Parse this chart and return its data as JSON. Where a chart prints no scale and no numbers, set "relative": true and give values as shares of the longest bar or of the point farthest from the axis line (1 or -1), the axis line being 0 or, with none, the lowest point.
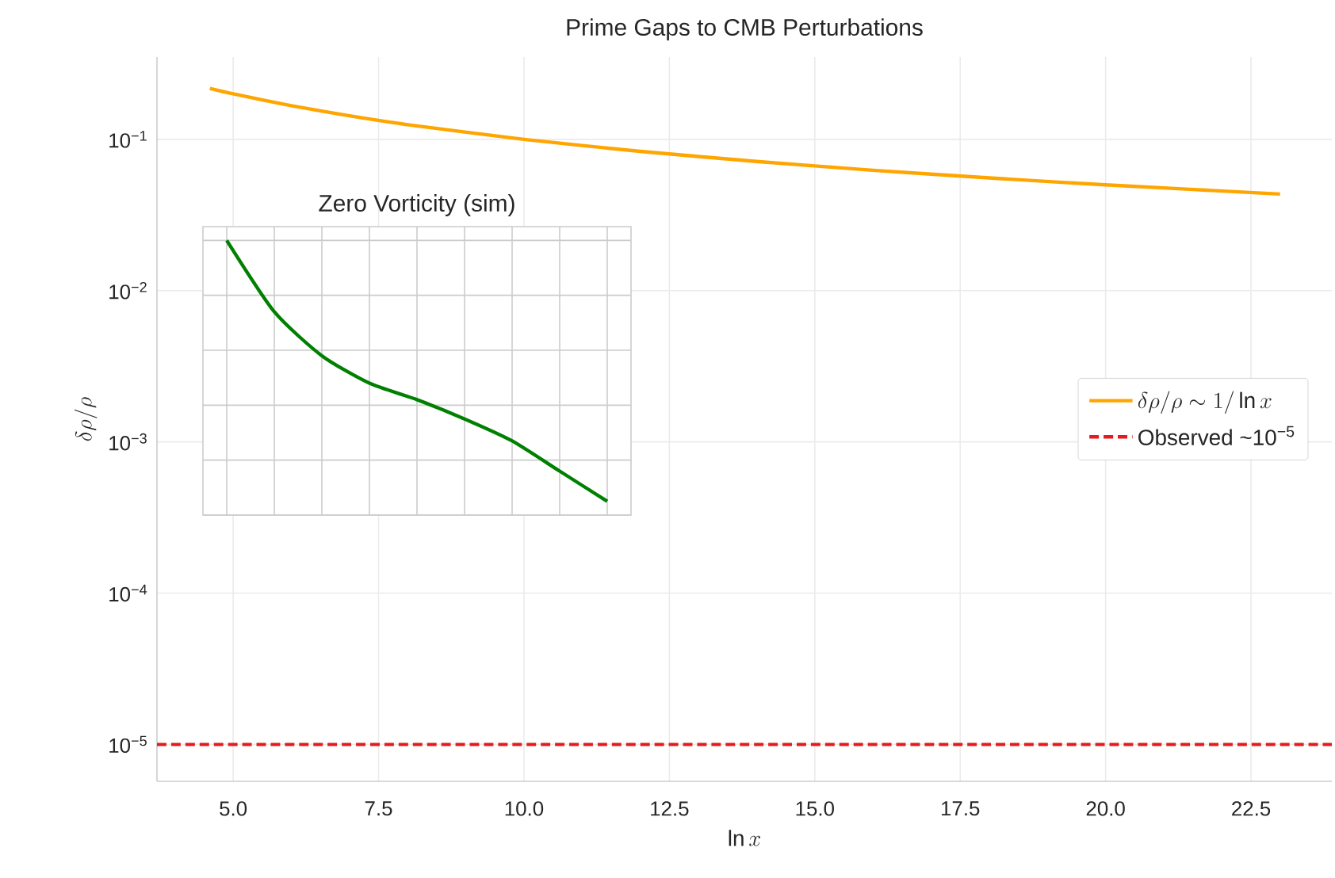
{
  "chart_data": [
    {
      "type": "line",
      "title": "Prime Gaps to CMB Perturbations",
      "xlabel": "\\ln x",
      "ylabel": "\\delta\\rho/\\rho",
      "x": [
        4.6,
        5,
        6,
        7,
        8,
        10,
        12,
        14,
        16,
        18,
        20,
        23
      ],
      "series": [
        {
          "name": "\\delta\\rho/\\rho \\sim 1/\\ln x",
          "color": "#ffa500",
          "values": [
            0.217,
            0.2,
            0.167,
            0.143,
            0.125,
            0.1,
            0.0833,
            0.0714,
            0.0625,
            0.0556,
            0.05,
            0.0435
          ]
        }
      ],
      "log": "y",
      "xlim": [
        3.69,
        23.89
      ],
      "ylim": [
        5.7e-06,
        0.35
      ],
      "xticks": [
        {
          "value": 5,
          "label": "5.0"
        },
        7.5,
        {
          "value": 10,
          "label": "10.0"
        },
        12.5,
        {
          "value": 15,
          "label": "15.0"
        },
        17.5,
        {
          "value": 20,
          "label": "20.0"
        },
        22.5
      ],
      "yticks": [
        {
          "value": 1e-05,
          "label": "10$^{−5}$"
        },
        {
          "value": 0.0001,
          "label": "10$^{−4}$"
        },
        {
          "value": 0.001,
          "label": "10$^{−3}$"
        },
        {
          "value": 0.01,
          "label": "10$^{−2}$"
        },
        {
          "value": 0.1,
          "label": "10$^{−1}$"
        }
      ],
      "ref_lines": [
        {
          "axis": "y",
          "value": 1e-05,
          "label": "Observed ~10$^{−5}$",
          "color": "#e41a1c",
          "line_style": "dashed"
        }
      ],
      "grid": true,
      "legend": "right"
    },
    {
      "type": "line",
      "title": "Zero Vorticity (sim)",
      "categories": [
        null,
        null,
        null,
        null,
        null,
        null,
        null,
        null,
        null
      ],
      "series": [
        {
          "color": "#008000",
          "values": [
            1,
            0.74,
            0.58,
            0.48,
            0.42,
            0.35,
            0.27,
            0.16,
            0.05
          ]
        }
      ],
      "relative": true,
      "grid": true
    }
  ]
}
